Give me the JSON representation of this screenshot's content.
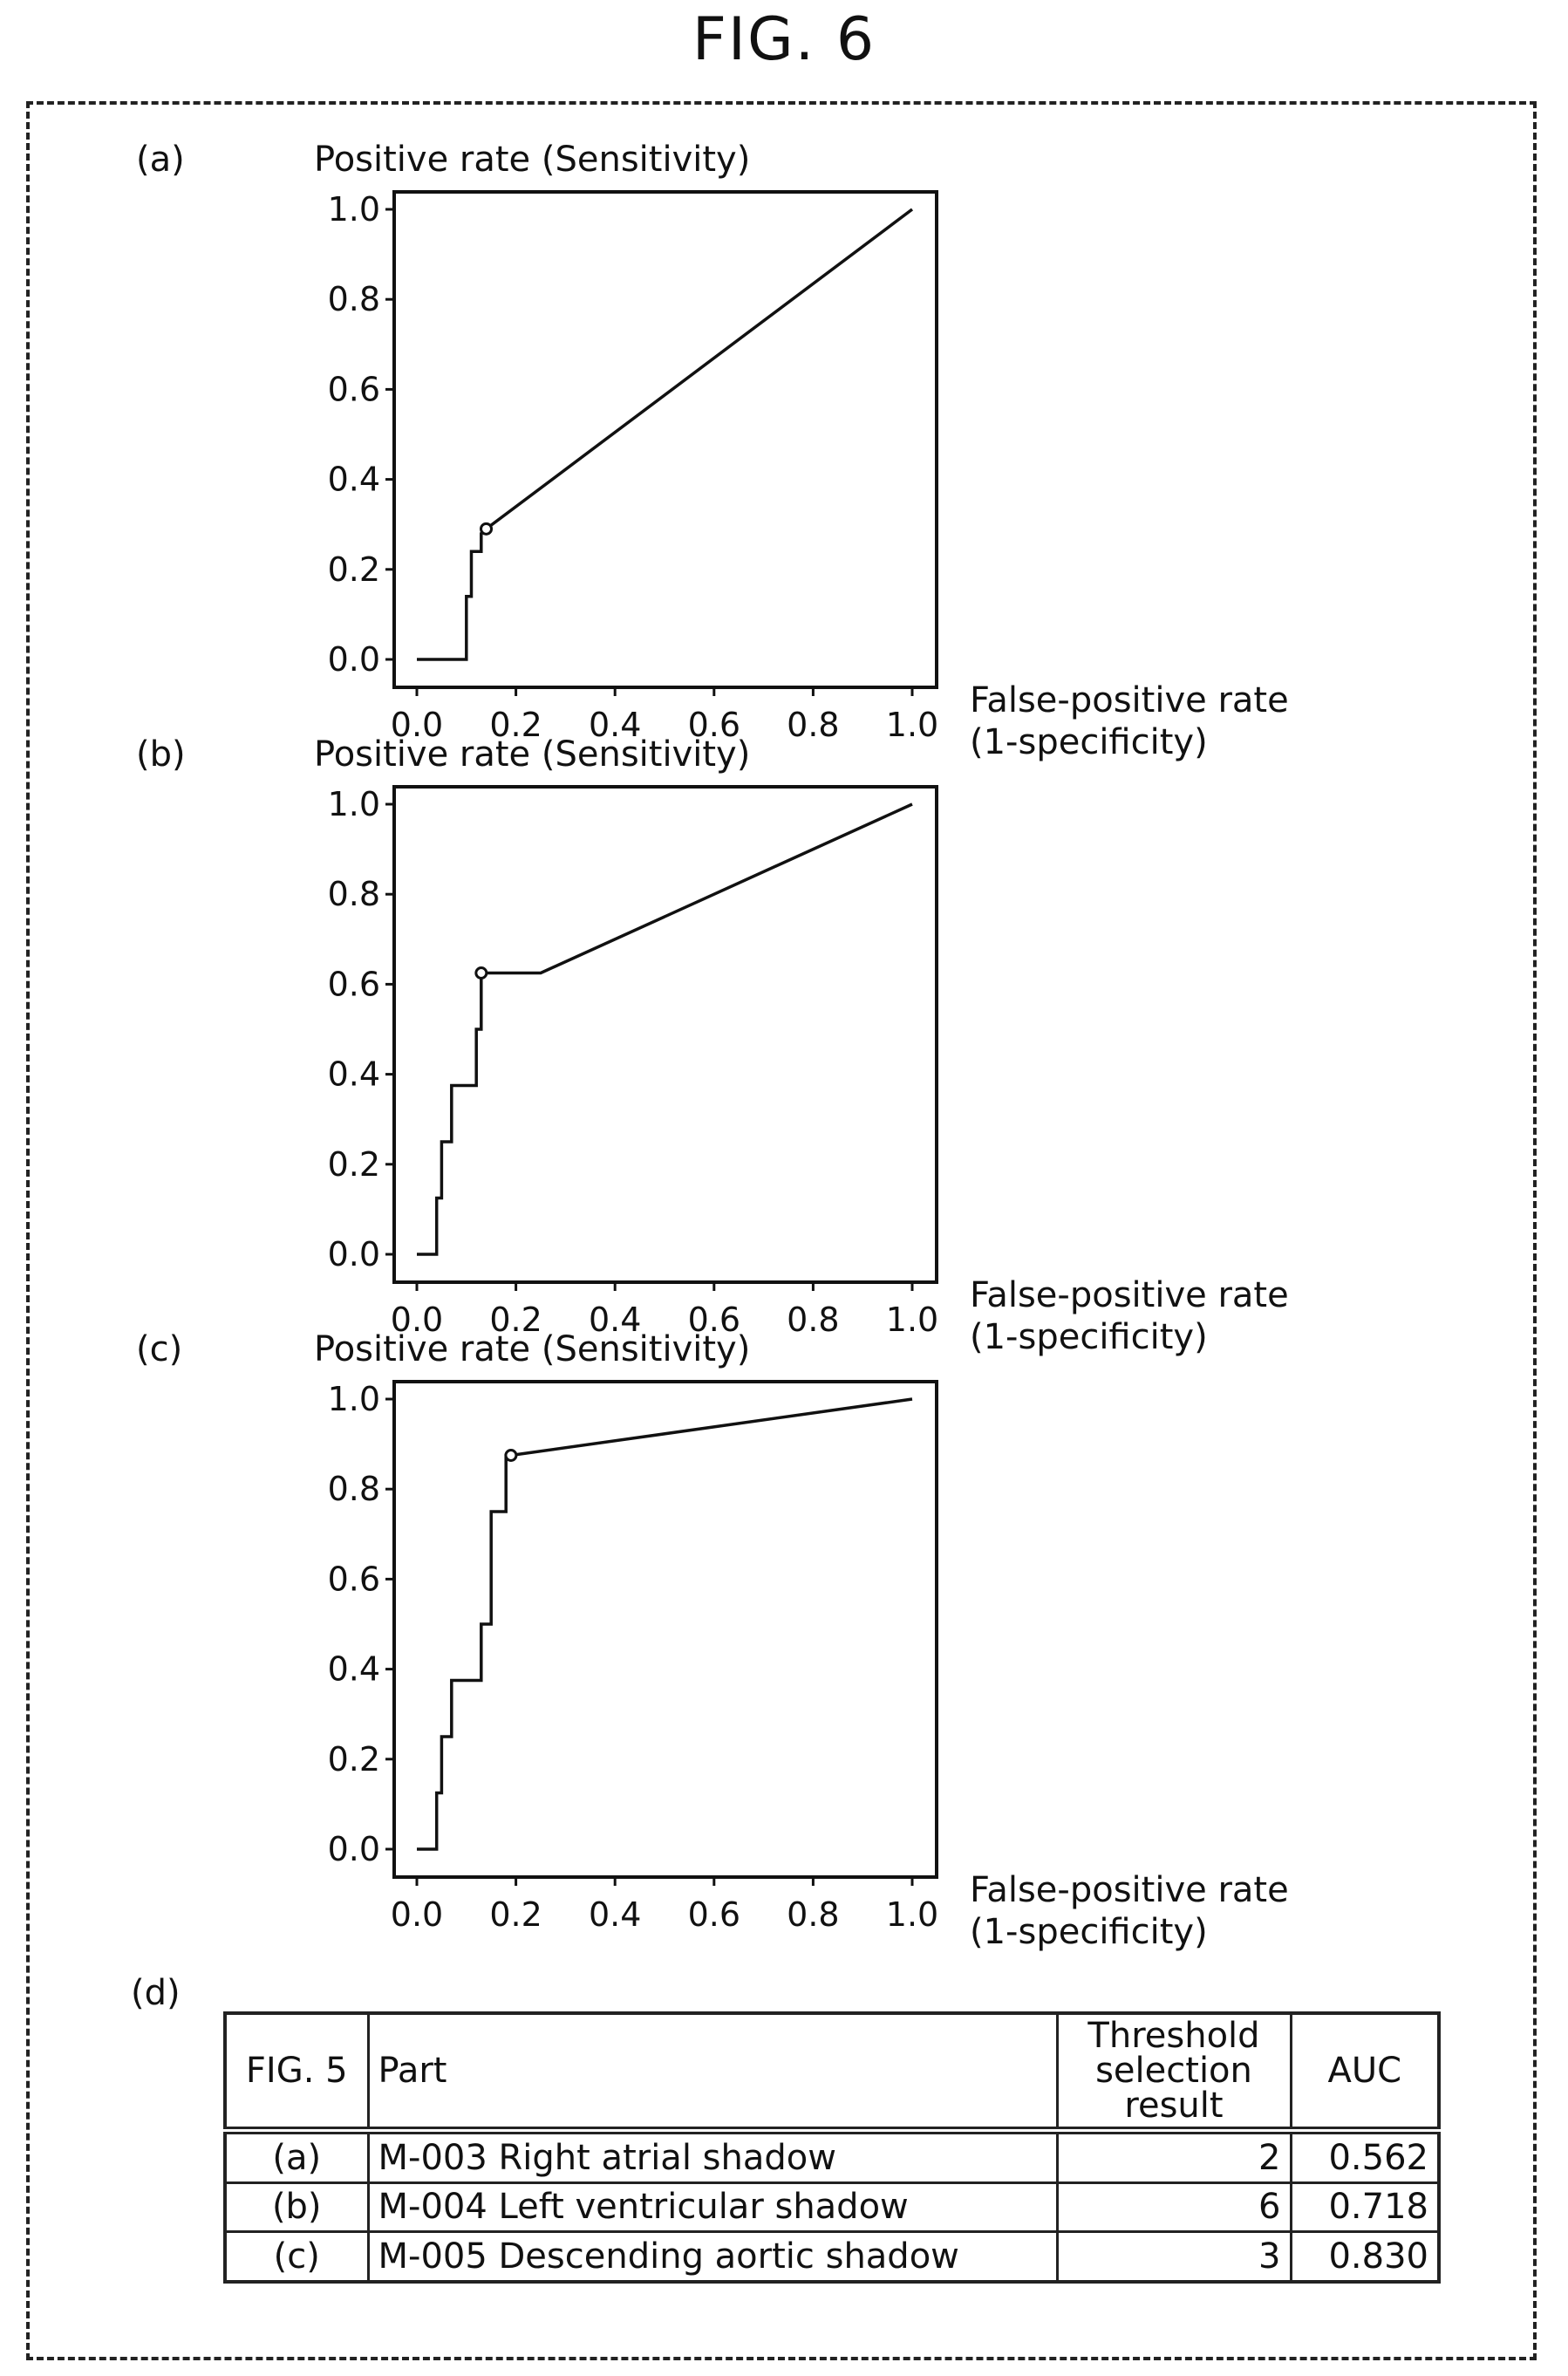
{
  "figure_title": "FIG. 6",
  "chart_data": [
    {
      "type": "line",
      "panel_label": "(a)",
      "ylabel": "Positive rate (Sensitivity)",
      "xlabel": "False-positive rate",
      "xlabel2": "(1-specificity)",
      "xlim": [
        0,
        1
      ],
      "ylim": [
        0,
        1
      ],
      "xticks": [
        "0.0",
        "0.2",
        "0.4",
        "0.6",
        "0.8",
        "1.0"
      ],
      "yticks": [
        "0.0",
        "0.2",
        "0.4",
        "0.6",
        "0.8",
        "1.0"
      ],
      "grid": false,
      "x": [
        0.0,
        0.1,
        0.1,
        0.11,
        0.11,
        0.13,
        0.13,
        0.14,
        1.0
      ],
      "y": [
        0.0,
        0.0,
        0.14,
        0.14,
        0.24,
        0.24,
        0.28,
        0.29,
        1.0
      ],
      "marker": {
        "x": 0.14,
        "y": 0.29
      }
    },
    {
      "type": "line",
      "panel_label": "(b)",
      "ylabel": "Positive rate (Sensitivity)",
      "xlabel": "False-positive rate",
      "xlabel2": "(1-specificity)",
      "xlim": [
        0,
        1
      ],
      "ylim": [
        0,
        1
      ],
      "xticks": [
        "0.0",
        "0.2",
        "0.4",
        "0.6",
        "0.8",
        "1.0"
      ],
      "yticks": [
        "0.0",
        "0.2",
        "0.4",
        "0.6",
        "0.8",
        "1.0"
      ],
      "grid": false,
      "x": [
        0.0,
        0.04,
        0.04,
        0.05,
        0.05,
        0.07,
        0.07,
        0.09,
        0.09,
        0.12,
        0.12,
        0.13,
        0.13,
        0.25,
        1.0
      ],
      "y": [
        0.0,
        0.0,
        0.125,
        0.125,
        0.25,
        0.25,
        0.375,
        0.375,
        0.375,
        0.375,
        0.5,
        0.5,
        0.625,
        0.625,
        1.0
      ],
      "marker": {
        "x": 0.13,
        "y": 0.625
      }
    },
    {
      "type": "line",
      "panel_label": "(c)",
      "ylabel": "Positive rate (Sensitivity)",
      "xlabel": "False-positive rate",
      "xlabel2": "(1-specificity)",
      "xlim": [
        0,
        1
      ],
      "ylim": [
        0,
        1
      ],
      "xticks": [
        "0.0",
        "0.2",
        "0.4",
        "0.6",
        "0.8",
        "1.0"
      ],
      "yticks": [
        "0.0",
        "0.2",
        "0.4",
        "0.6",
        "0.8",
        "1.0"
      ],
      "grid": false,
      "x": [
        0.0,
        0.04,
        0.04,
        0.05,
        0.05,
        0.07,
        0.07,
        0.13,
        0.13,
        0.15,
        0.15,
        0.18,
        0.18,
        0.19,
        1.0
      ],
      "y": [
        0.0,
        0.0,
        0.125,
        0.125,
        0.25,
        0.25,
        0.375,
        0.375,
        0.5,
        0.5,
        0.75,
        0.75,
        0.875,
        0.875,
        1.0
      ],
      "marker": {
        "x": 0.19,
        "y": 0.875
      }
    }
  ],
  "table": {
    "panel_label": "(d)",
    "headers": {
      "fig": "FIG. 5",
      "part": "Part",
      "threshold": "Threshold selection result",
      "auc": "AUC"
    },
    "rows": [
      {
        "fig": "(a)",
        "part": "M-003 Right atrial shadow",
        "threshold": "2",
        "auc": "0.562"
      },
      {
        "fig": "(b)",
        "part": "M-004 Left ventricular shadow",
        "threshold": "6",
        "auc": "0.718"
      },
      {
        "fig": "(c)",
        "part": "M-005 Descending aortic shadow",
        "threshold": "3",
        "auc": "0.830"
      }
    ]
  }
}
